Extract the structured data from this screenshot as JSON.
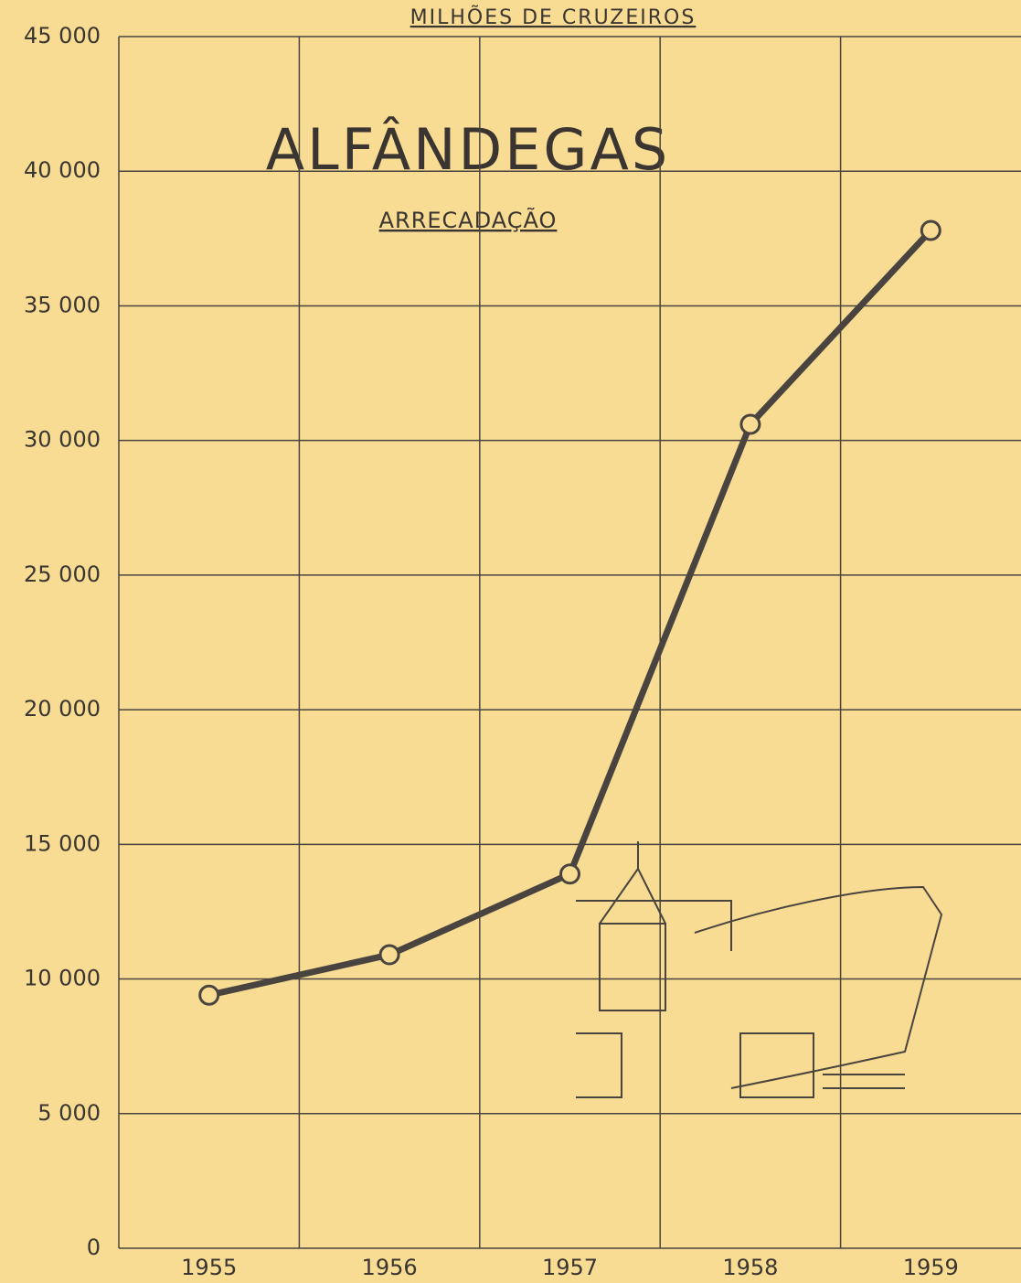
{
  "chart_data": {
    "type": "line",
    "title": "ALFÂNDEGAS",
    "subtitle": "ARRECADAÇÃO",
    "y_label": "MILHÕES DE CRUZEIROS",
    "categories": [
      "1955",
      "1956",
      "1957",
      "1958",
      "1959"
    ],
    "values": [
      9400,
      10900,
      13900,
      30600,
      37800
    ],
    "color": "#4a4440",
    "ylim": [
      0,
      45000
    ],
    "yticks": [
      0,
      {
        "value": 5000,
        "label": "5 000"
      },
      {
        "value": 10000,
        "label": "10 000"
      },
      {
        "value": 15000,
        "label": "15 000"
      },
      {
        "value": 20000,
        "label": "20 000"
      },
      {
        "value": 25000,
        "label": "25 000"
      },
      {
        "value": 30000,
        "label": "30 000"
      },
      {
        "value": 35000,
        "label": "35 000"
      },
      {
        "value": 40000,
        "label": "40 000"
      },
      {
        "value": 45000,
        "label": "45 000"
      }
    ],
    "grid": true
  }
}
